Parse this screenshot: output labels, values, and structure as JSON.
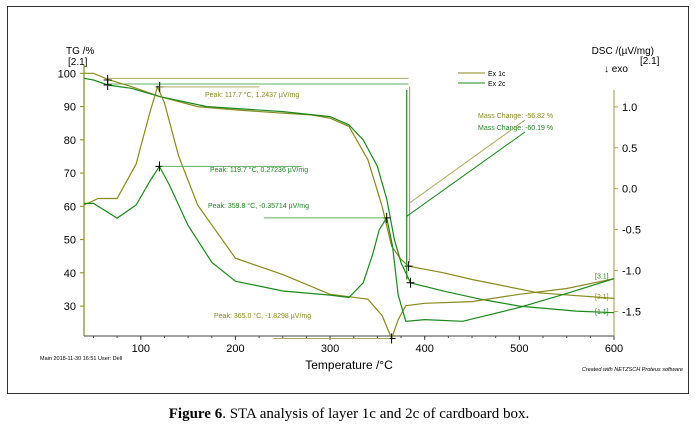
{
  "chart_data": {
    "type": "line",
    "title": "",
    "xlabel": "Temperature /°C",
    "ylabel_left": "TG /%",
    "ylabel_left_sub": "[2.1]",
    "ylabel_right": "DSC /(µV/mg)",
    "ylabel_right_sub": "[2.1]",
    "exo_label": "↓ exo",
    "xlim": [
      40,
      600
    ],
    "ylim_left": [
      21,
      101
    ],
    "ylim_right": [
      -1.8,
      1.45
    ],
    "xticks": [
      100,
      200,
      300,
      400,
      500,
      600
    ],
    "yticks_left": [
      30,
      40,
      50,
      60,
      70,
      80,
      90,
      100
    ],
    "yticks_right": [
      -1.5,
      -1.0,
      -0.5,
      0.0,
      0.5,
      1.0
    ],
    "legend": [
      "Ex 1c",
      "Ex 2c"
    ],
    "colors": {
      "1c": "#8a8a1a",
      "2c": "#1a8a1a",
      "1c_light": "#b0a860",
      "2c_light": "#60b060"
    },
    "series": [
      {
        "name": "TG Ex 1c",
        "axis": "left",
        "color": "1c",
        "x": [
          40,
          50,
          65,
          90,
          120,
          160,
          200,
          250,
          280,
          300,
          320,
          340,
          355,
          365,
          375,
          383,
          420,
          450,
          520,
          600
        ],
        "y": [
          100,
          100,
          98.2,
          96,
          93,
          90,
          89,
          88,
          87.5,
          86.5,
          84,
          74,
          60,
          48,
          44,
          42,
          40,
          38,
          34,
          32.3
        ]
      },
      {
        "name": "TG Ex 2c",
        "axis": "left",
        "color": "2c",
        "x": [
          40,
          50,
          65,
          90,
          120,
          170,
          250,
          300,
          320,
          335,
          350,
          360,
          368,
          375,
          385,
          420,
          460,
          500,
          560,
          600
        ],
        "y": [
          98.5,
          98,
          96.5,
          95.5,
          93,
          90,
          88.5,
          87,
          84.5,
          80,
          72,
          62,
          50,
          43,
          37,
          34.5,
          32,
          30,
          28.5,
          28
        ]
      },
      {
        "name": "DSC Ex 1c",
        "axis": "right",
        "color": "1c",
        "x": [
          40,
          55,
          75,
          95,
          110,
          117.7,
          125,
          140,
          160,
          200,
          250,
          300,
          320,
          340,
          355,
          365,
          372,
          380,
          400,
          450,
          500,
          550,
          600
        ],
        "y": [
          -0.2,
          -0.12,
          -0.12,
          0.3,
          0.95,
          1.2437,
          1.05,
          0.4,
          -0.2,
          -0.85,
          -1.05,
          -1.29,
          -1.32,
          -1.35,
          -1.55,
          -1.8298,
          -1.6,
          -1.43,
          -1.4,
          -1.38,
          -1.29,
          -1.22,
          -1.1
        ]
      },
      {
        "name": "DSC Ex 2c",
        "axis": "right",
        "color": "2c",
        "x": [
          40,
          50,
          75,
          95,
          110,
          119.7,
          130,
          150,
          175,
          200,
          250,
          300,
          320,
          335,
          345,
          352,
          359.8,
          366,
          372,
          380,
          400,
          440,
          500,
          550,
          600
        ],
        "y": [
          -0.18,
          -0.18,
          -0.36,
          -0.2,
          0.1,
          0.27236,
          0.05,
          -0.45,
          -0.9,
          -1.13,
          -1.25,
          -1.3,
          -1.33,
          -1.15,
          -0.8,
          -0.5,
          -0.35714,
          -0.7,
          -1.3,
          -1.62,
          -1.6,
          -1.62,
          -1.45,
          -1.28,
          -1.1
        ]
      }
    ],
    "annotations": [
      {
        "text": "Peak: 117.7 °C, 1.2437 µV/mg",
        "color": "1c"
      },
      {
        "text": "Peak: 119.7 °C, 0.27236 µV/mg",
        "color": "2c"
      },
      {
        "text": "Peak: 359.8 °C, -0.35714 µV/mg",
        "color": "2c"
      },
      {
        "text": "Peak: 365.0 °C, -1.8298 µV/mg",
        "color": "1c"
      },
      {
        "text": "Mass Change: -56.82 %",
        "color": "1c"
      },
      {
        "text": "Mass Change: -60.19 %",
        "color": "2c"
      }
    ],
    "end_labels": [
      "[3.1]",
      "[2.1]",
      "[1.1]"
    ],
    "footer_left": "Main   2018-11-30 16:51   User: Dell",
    "footer_right": "Created with NETZSCH Proteus software"
  },
  "caption": {
    "label": "Figure 6",
    "text": ". STA analysis of layer 1c and 2c of cardboard box."
  }
}
